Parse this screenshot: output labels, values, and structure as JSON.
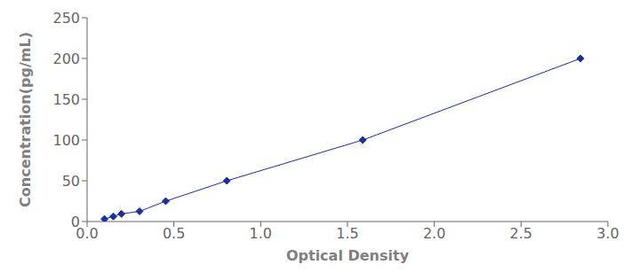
{
  "chart_data": {
    "type": "line",
    "x": [
      0.1,
      0.151,
      0.198,
      0.302,
      0.453,
      0.805,
      1.588,
      2.842
    ],
    "values": [
      3.1,
      6.25,
      9.4,
      12.5,
      25.0,
      50.0,
      100.0,
      200.0
    ],
    "color": "#1a2e9e",
    "marker": "diamond",
    "line_style": "solid",
    "xlabel": "Optical Density",
    "ylabel": "Concentration(pg/mL)",
    "xlim": [
      0,
      3.0
    ],
    "ylim": [
      0,
      250
    ],
    "xticks": [
      {
        "value": 0,
        "label": "0.0"
      },
      0.5,
      {
        "value": 1,
        "label": "1.0"
      },
      1.5,
      {
        "value": 2,
        "label": "2.0"
      },
      2.5,
      {
        "value": 3,
        "label": "3.0"
      }
    ],
    "yticks": [
      0,
      50,
      100,
      150,
      200,
      250
    ],
    "grid": false
  }
}
